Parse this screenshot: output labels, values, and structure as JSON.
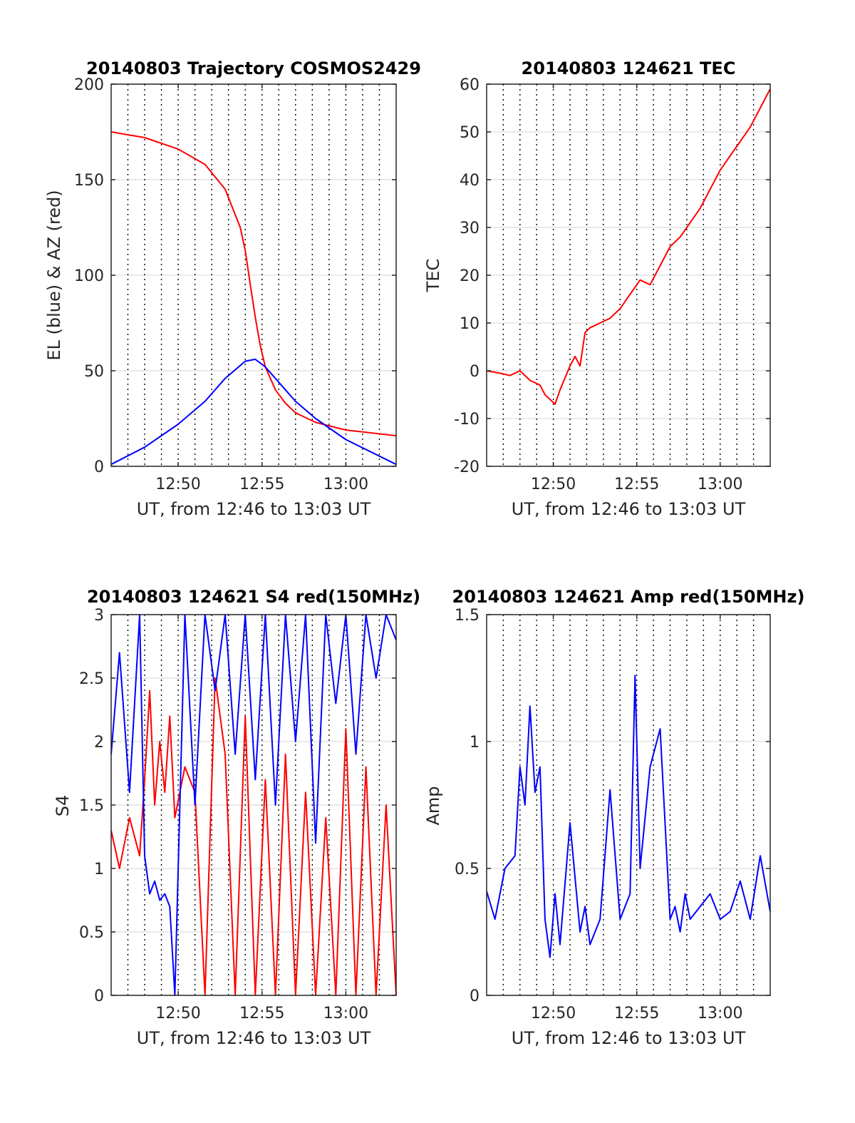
{
  "figure": {
    "background": "#ffffff"
  },
  "colors": {
    "red": "#ff0000",
    "blue": "#0000ff",
    "grid": "#dddddd",
    "vgrid": "#000000",
    "axis": "#262626"
  },
  "chart_data": [
    {
      "type": "line",
      "title": "20140803 Trajectory COSMOS2429",
      "xlabel": "UT, from 12:46 to 13:03 UT",
      "ylabel": "EL (blue) & AZ (red)",
      "xlim": [
        12.7667,
        13.05
      ],
      "ylim": [
        0,
        200
      ],
      "xticks": [
        {
          "value": 12.8333,
          "label": "12:50"
        },
        {
          "value": 12.9167,
          "label": "12:55"
        },
        {
          "value": 13.0,
          "label": "13:00"
        }
      ],
      "yticks": [
        {
          "value": 0,
          "label": "0"
        },
        {
          "value": 50,
          "label": "50"
        },
        {
          "value": 100,
          "label": "100"
        },
        {
          "value": 150,
          "label": "150"
        },
        {
          "value": 200,
          "label": "200"
        }
      ],
      "grid": true,
      "series": [
        {
          "color": "#ff0000",
          "x": [
            12.7667,
            12.8,
            12.8333,
            12.86,
            12.88,
            12.895,
            12.9,
            12.905,
            12.91,
            12.915,
            12.92,
            12.93,
            12.94,
            12.95,
            12.97,
            13.0,
            13.05
          ],
          "y": [
            175,
            172,
            166,
            158,
            145,
            125,
            113,
            95,
            78,
            63,
            52,
            40,
            33,
            28,
            23,
            19,
            16
          ]
        },
        {
          "color": "#0000ff",
          "x": [
            12.7667,
            12.8,
            12.8333,
            12.86,
            12.88,
            12.9,
            12.91,
            12.92,
            12.935,
            12.95,
            12.97,
            13.0,
            13.05
          ],
          "y": [
            1,
            10,
            22,
            34,
            46,
            55,
            56,
            52,
            43,
            34,
            25,
            14,
            1
          ]
        }
      ]
    },
    {
      "type": "line",
      "title": "20140803 124621 TEC",
      "xlabel": "UT, from 12:46 to 13:03 UT",
      "ylabel": "TEC",
      "xlim": [
        12.7667,
        13.05
      ],
      "ylim": [
        -20,
        60
      ],
      "xticks": [
        {
          "value": 12.8333,
          "label": "12:50"
        },
        {
          "value": 12.9167,
          "label": "12:55"
        },
        {
          "value": 13.0,
          "label": "13:00"
        }
      ],
      "yticks": [
        {
          "value": -20,
          "label": "-20"
        },
        {
          "value": -10,
          "label": "-10"
        },
        {
          "value": 0,
          "label": "0"
        },
        {
          "value": 10,
          "label": "10"
        },
        {
          "value": 20,
          "label": "20"
        },
        {
          "value": 30,
          "label": "30"
        },
        {
          "value": 40,
          "label": "40"
        },
        {
          "value": 50,
          "label": "50"
        },
        {
          "value": 60,
          "label": "60"
        }
      ],
      "grid": true,
      "series": [
        {
          "color": "#ff0000",
          "x": [
            12.7667,
            12.78,
            12.79,
            12.8,
            12.81,
            12.82,
            12.825,
            12.83,
            12.835,
            12.84,
            12.85,
            12.855,
            12.86,
            12.865,
            12.87,
            12.88,
            12.89,
            12.9,
            12.91,
            12.92,
            12.93,
            12.94,
            12.95,
            12.96,
            12.97,
            12.98,
            12.99,
            13.0,
            13.01,
            13.02,
            13.03,
            13.04,
            13.05
          ],
          "y": [
            0,
            -0.5,
            -1,
            0,
            -2,
            -3,
            -5,
            -6,
            -7,
            -4,
            1,
            3,
            1,
            8,
            9,
            10,
            11,
            13,
            16,
            19,
            18,
            22,
            26,
            28,
            31,
            34,
            38,
            42,
            45,
            48,
            51,
            55,
            59
          ]
        }
      ]
    },
    {
      "type": "line",
      "title": "20140803 124621 S4 red(150MHz)",
      "xlabel": "UT, from 12:46 to 13:03 UT",
      "ylabel": "S4",
      "xlim": [
        12.7667,
        13.05
      ],
      "ylim": [
        0,
        3
      ],
      "xticks": [
        {
          "value": 12.8333,
          "label": "12:50"
        },
        {
          "value": 12.9167,
          "label": "12:55"
        },
        {
          "value": 13.0,
          "label": "13:00"
        }
      ],
      "yticks": [
        {
          "value": 0,
          "label": "0"
        },
        {
          "value": 0.5,
          "label": "0.5"
        },
        {
          "value": 1,
          "label": "1"
        },
        {
          "value": 1.5,
          "label": "1.5"
        },
        {
          "value": 2,
          "label": "2"
        },
        {
          "value": 2.5,
          "label": "2.5"
        },
        {
          "value": 3,
          "label": "3"
        }
      ],
      "grid": true,
      "series": [
        {
          "color": "#ff0000",
          "x": [
            12.7667,
            12.775,
            12.785,
            12.795,
            12.8,
            12.805,
            12.81,
            12.815,
            12.82,
            12.825,
            12.83,
            12.84,
            12.85,
            12.86,
            12.87,
            12.88,
            12.89,
            12.9,
            12.91,
            12.92,
            12.93,
            12.94,
            12.95,
            12.96,
            12.97,
            12.98,
            12.99,
            13.0,
            13.01,
            13.02,
            13.03,
            13.04,
            13.05
          ],
          "y": [
            1.3,
            1.0,
            1.4,
            1.1,
            1.7,
            2.4,
            1.5,
            2.0,
            1.6,
            2.2,
            1.4,
            1.8,
            1.6,
            0.0,
            2.5,
            1.9,
            0.0,
            2.2,
            0.0,
            1.7,
            0.0,
            1.9,
            0.0,
            1.6,
            0.0,
            1.4,
            0.0,
            2.1,
            0.0,
            1.8,
            0.0,
            1.5,
            0.0
          ]
        },
        {
          "color": "#0000ff",
          "x": [
            12.7667,
            12.775,
            12.785,
            12.795,
            12.8,
            12.805,
            12.81,
            12.815,
            12.82,
            12.825,
            12.83,
            12.84,
            12.85,
            12.86,
            12.87,
            12.88,
            12.89,
            12.9,
            12.91,
            12.92,
            12.93,
            12.94,
            12.95,
            12.96,
            12.97,
            12.98,
            12.99,
            13.0,
            13.01,
            13.02,
            13.03,
            13.04,
            13.05
          ],
          "y": [
            1.9,
            2.7,
            1.6,
            3.0,
            1.1,
            0.8,
            0.9,
            0.75,
            0.8,
            0.7,
            0.0,
            3.0,
            1.5,
            3.0,
            2.4,
            3.0,
            1.9,
            3.0,
            1.7,
            3.0,
            1.5,
            3.0,
            2.0,
            3.0,
            1.2,
            3.0,
            2.3,
            3.0,
            1.9,
            3.0,
            2.5,
            3.0,
            2.8
          ]
        }
      ]
    },
    {
      "type": "line",
      "title": "20140803 124621 Amp red(150MHz)",
      "xlabel": "UT, from 12:46 to 13:03 UT",
      "ylabel": "Amp",
      "xlim": [
        12.7667,
        13.05
      ],
      "ylim": [
        0,
        1.5
      ],
      "xticks": [
        {
          "value": 12.8333,
          "label": "12:50"
        },
        {
          "value": 12.9167,
          "label": "12:55"
        },
        {
          "value": 13.0,
          "label": "13:00"
        }
      ],
      "yticks": [
        {
          "value": 0,
          "label": "0"
        },
        {
          "value": 0.5,
          "label": "0.5"
        },
        {
          "value": 1,
          "label": "1"
        },
        {
          "value": 1.5,
          "label": "1.5"
        }
      ],
      "grid": true,
      "series": [
        {
          "color": "#0000ff",
          "x": [
            12.7667,
            12.775,
            12.785,
            12.795,
            12.8,
            12.805,
            12.81,
            12.815,
            12.82,
            12.825,
            12.83,
            12.835,
            12.84,
            12.85,
            12.86,
            12.865,
            12.87,
            12.88,
            12.89,
            12.9,
            12.91,
            12.915,
            12.92,
            12.93,
            12.94,
            12.95,
            12.955,
            12.96,
            12.965,
            12.97,
            12.98,
            12.99,
            13.0,
            13.01,
            13.02,
            13.03,
            13.04,
            13.05
          ],
          "y": [
            0.41,
            0.3,
            0.5,
            0.55,
            0.9,
            0.75,
            1.14,
            0.8,
            0.9,
            0.3,
            0.15,
            0.4,
            0.2,
            0.68,
            0.25,
            0.35,
            0.2,
            0.3,
            0.81,
            0.3,
            0.4,
            1.26,
            0.5,
            0.9,
            1.05,
            0.3,
            0.35,
            0.25,
            0.4,
            0.3,
            0.35,
            0.4,
            0.3,
            0.33,
            0.45,
            0.3,
            0.55,
            0.33
          ]
        }
      ]
    }
  ]
}
